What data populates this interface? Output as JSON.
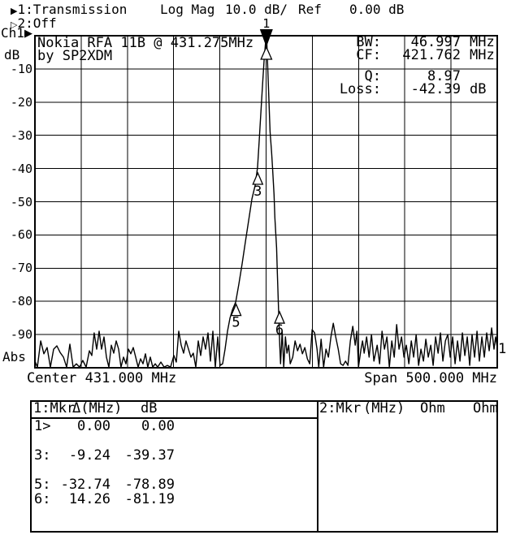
{
  "header": {
    "trace1": {
      "arrow": "▶",
      "label": "1:Transmission"
    },
    "trace2": {
      "arrow": "▷",
      "label": "2:Off"
    },
    "format": "Log Mag",
    "scale": "10.0 dB/",
    "ref_label": "Ref",
    "ref_value": "0.00 dB"
  },
  "axis": {
    "channel": "Ch1",
    "channel_arrow": "▶",
    "unit": "dB",
    "ticks": [
      "-10",
      "-20",
      "-30",
      "-40",
      "-50",
      "-60",
      "-70",
      "-80",
      "-90"
    ],
    "bottom_label": "Abs",
    "center_label": "Center 431.000 MHz",
    "span_label": "Span 500.000 MHz",
    "trace_number": "1"
  },
  "annotation": {
    "line1": "Nokia RFA 11B @ 431.275MHz",
    "line2": "by SP2XDM"
  },
  "results": {
    "rows": [
      {
        "label": "BW:",
        "num": "46.997",
        "unit": "MHz"
      },
      {
        "label": "CF:",
        "num": "421.762",
        "unit": "MHz"
      },
      {
        "label": "Q:",
        "num": "8.97",
        "unit": ""
      },
      {
        "label": "Loss:",
        "num": "-42.39",
        "unit": "dB"
      }
    ]
  },
  "marker_table": {
    "left": {
      "title": "1:Mkr",
      "col1": "Δ(MHz)",
      "col2": "dB",
      "rows": [
        {
          "id": "1>",
          "c1": "0.00",
          "c2": "0.00"
        },
        {
          "id": "",
          "c1": "",
          "c2": ""
        },
        {
          "id": "3:",
          "c1": "-9.24",
          "c2": "-39.37"
        },
        {
          "id": "",
          "c1": "",
          "c2": ""
        },
        {
          "id": "5:",
          "c1": "-32.74",
          "c2": "-78.89"
        },
        {
          "id": "6:",
          "c1": "14.26",
          "c2": "-81.19"
        }
      ]
    },
    "right": {
      "title": "2:Mkr",
      "col1": "(MHz)",
      "col2": "Ohm",
      "col3": "Ohm",
      "rows": []
    }
  },
  "colors": {
    "fg": "#000000",
    "bg": "#ffffff"
  },
  "chart_data": {
    "type": "line",
    "title": "Transmission Log Mag 10.0 dB/ Ref 0.00 dB",
    "x_axis": {
      "label": "MHz",
      "min": 181.0,
      "max": 681.0,
      "center": 431.0,
      "span": 500.0,
      "divisions": 10
    },
    "y_axis": {
      "label": "dB",
      "min": -100,
      "max": 0,
      "per_div": 10,
      "divisions": 10
    },
    "grid": true,
    "markers": [
      {
        "id": "1",
        "mhz": 431.275,
        "db": 0.0,
        "delta_mhz": 0.0,
        "style": "active-peak"
      },
      {
        "id": "3",
        "mhz": 422.035,
        "db": -39.37,
        "delta_mhz": -9.24,
        "style": "normal"
      },
      {
        "id": "5",
        "mhz": 398.535,
        "db": -78.89,
        "delta_mhz": -32.74,
        "style": "normal"
      },
      {
        "id": "6",
        "mhz": 445.535,
        "db": -81.19,
        "delta_mhz": 14.26,
        "style": "normal"
      }
    ],
    "trace": [
      [
        181.0,
        -98.0
      ],
      [
        183.6,
        -99.8
      ],
      [
        187.2,
        -91.9
      ],
      [
        190.7,
        -95.8
      ],
      [
        194.2,
        -93.9
      ],
      [
        197.7,
        -99.8
      ],
      [
        201.2,
        -94.4
      ],
      [
        204.7,
        -93.4
      ],
      [
        208.2,
        -95.4
      ],
      [
        211.8,
        -96.8
      ],
      [
        215.3,
        -99.8
      ],
      [
        218.8,
        -92.9
      ],
      [
        222.3,
        -99.8
      ],
      [
        225.8,
        -98.8
      ],
      [
        229.3,
        -99.8
      ],
      [
        232.8,
        -97.8
      ],
      [
        236.4,
        -99.8
      ],
      [
        239.9,
        -94.9
      ],
      [
        242.5,
        -96.3
      ],
      [
        245.1,
        -89.5
      ],
      [
        247.8,
        -94.4
      ],
      [
        250.4,
        -89.0
      ],
      [
        253.1,
        -94.4
      ],
      [
        255.7,
        -90.7
      ],
      [
        258.3,
        -96.8
      ],
      [
        261.0,
        -99.8
      ],
      [
        263.6,
        -93.2
      ],
      [
        266.2,
        -95.6
      ],
      [
        268.9,
        -91.9
      ],
      [
        271.5,
        -94.4
      ],
      [
        274.1,
        -99.8
      ],
      [
        276.8,
        -96.8
      ],
      [
        279.4,
        -98.8
      ],
      [
        282.1,
        -94.4
      ],
      [
        284.7,
        -95.8
      ],
      [
        287.3,
        -93.9
      ],
      [
        290.0,
        -96.8
      ],
      [
        292.6,
        -99.8
      ],
      [
        295.2,
        -97.3
      ],
      [
        297.9,
        -98.8
      ],
      [
        300.5,
        -95.8
      ],
      [
        303.1,
        -99.8
      ],
      [
        305.8,
        -96.8
      ],
      [
        308.4,
        -99.8
      ],
      [
        311.1,
        -98.8
      ],
      [
        313.7,
        -99.8
      ],
      [
        317.2,
        -98.3
      ],
      [
        320.7,
        -99.8
      ],
      [
        324.2,
        -99.3
      ],
      [
        327.7,
        -99.8
      ],
      [
        331.3,
        -96.3
      ],
      [
        333.9,
        -98.3
      ],
      [
        336.5,
        -89.0
      ],
      [
        339.2,
        -93.2
      ],
      [
        341.8,
        -95.6
      ],
      [
        344.4,
        -91.9
      ],
      [
        347.1,
        -94.4
      ],
      [
        349.7,
        -96.8
      ],
      [
        352.3,
        -95.6
      ],
      [
        355.0,
        -99.8
      ],
      [
        357.6,
        -91.9
      ],
      [
        360.3,
        -96.3
      ],
      [
        362.9,
        -90.7
      ],
      [
        365.5,
        -94.4
      ],
      [
        368.2,
        -89.5
      ],
      [
        370.8,
        -98.0
      ],
      [
        373.4,
        -89.0
      ],
      [
        376.1,
        -99.8
      ],
      [
        378.7,
        -90.7
      ],
      [
        381.3,
        -99.3
      ],
      [
        384.0,
        -98.8
      ],
      [
        386.6,
        -94.4
      ],
      [
        389.3,
        -89.0
      ],
      [
        391.9,
        -85.1
      ],
      [
        394.5,
        -82.6
      ],
      [
        398.1,
        -80.2
      ],
      [
        401.6,
        -74.8
      ],
      [
        405.1,
        -68.7
      ],
      [
        408.6,
        -62.1
      ],
      [
        412.1,
        -55.7
      ],
      [
        415.7,
        -49.1
      ],
      [
        419.2,
        -45.0
      ],
      [
        421.8,
        -39.6
      ],
      [
        423.6,
        -31.3
      ],
      [
        425.3,
        -23.5
      ],
      [
        427.1,
        -14.9
      ],
      [
        428.8,
        -7.6
      ],
      [
        430.6,
        -1.5
      ],
      [
        431.3,
        -0.8
      ],
      [
        431.9,
        -2.7
      ],
      [
        432.7,
        -8.8
      ],
      [
        433.6,
        -16.1
      ],
      [
        434.4,
        -22.2
      ],
      [
        435.3,
        -28.9
      ],
      [
        437.0,
        -35.2
      ],
      [
        437.9,
        -39.6
      ],
      [
        439.6,
        -47.9
      ],
      [
        440.5,
        -54.8
      ],
      [
        442.3,
        -63.8
      ],
      [
        443.1,
        -71.1
      ],
      [
        444.0,
        -78.5
      ],
      [
        444.9,
        -85.8
      ],
      [
        445.8,
        -93.2
      ],
      [
        446.6,
        -98.8
      ],
      [
        448.4,
        -89.0
      ],
      [
        450.1,
        -99.8
      ],
      [
        451.9,
        -90.7
      ],
      [
        453.6,
        -95.6
      ],
      [
        455.4,
        -93.2
      ],
      [
        457.1,
        -98.8
      ],
      [
        459.8,
        -96.8
      ],
      [
        462.4,
        -91.9
      ],
      [
        465.0,
        -94.9
      ],
      [
        467.7,
        -92.9
      ],
      [
        470.3,
        -95.8
      ],
      [
        472.9,
        -93.9
      ],
      [
        475.6,
        -97.3
      ],
      [
        478.2,
        -98.8
      ],
      [
        480.8,
        -88.5
      ],
      [
        483.5,
        -89.5
      ],
      [
        486.1,
        -94.4
      ],
      [
        487.9,
        -99.8
      ],
      [
        490.5,
        -91.4
      ],
      [
        493.2,
        -99.8
      ],
      [
        495.8,
        -94.4
      ],
      [
        498.4,
        -96.8
      ],
      [
        501.1,
        -90.7
      ],
      [
        503.7,
        -86.6
      ],
      [
        506.3,
        -90.7
      ],
      [
        509.0,
        -94.4
      ],
      [
        511.6,
        -98.8
      ],
      [
        514.2,
        -99.3
      ],
      [
        516.9,
        -98.0
      ],
      [
        519.5,
        -99.3
      ],
      [
        522.1,
        -91.9
      ],
      [
        524.8,
        -87.5
      ],
      [
        527.4,
        -93.2
      ],
      [
        529.2,
        -89.0
      ],
      [
        530.9,
        -99.8
      ],
      [
        533.6,
        -94.4
      ],
      [
        535.3,
        -91.9
      ],
      [
        537.1,
        -95.6
      ],
      [
        539.7,
        -90.7
      ],
      [
        542.4,
        -96.8
      ],
      [
        545.0,
        -90.0
      ],
      [
        547.6,
        -98.0
      ],
      [
        551.1,
        -93.2
      ],
      [
        553.8,
        -98.8
      ],
      [
        556.4,
        -89.0
      ],
      [
        559.0,
        -94.4
      ],
      [
        561.7,
        -90.7
      ],
      [
        564.3,
        -99.8
      ],
      [
        566.9,
        -91.9
      ],
      [
        569.6,
        -96.8
      ],
      [
        572.2,
        -87.0
      ],
      [
        574.8,
        -94.4
      ],
      [
        577.5,
        -90.7
      ],
      [
        580.1,
        -96.8
      ],
      [
        582.7,
        -93.2
      ],
      [
        585.4,
        -98.8
      ],
      [
        588.0,
        -91.9
      ],
      [
        590.6,
        -96.8
      ],
      [
        593.3,
        -90.0
      ],
      [
        595.9,
        -99.3
      ],
      [
        598.5,
        -94.4
      ],
      [
        601.2,
        -98.0
      ],
      [
        603.8,
        -91.4
      ],
      [
        606.4,
        -96.8
      ],
      [
        609.1,
        -93.2
      ],
      [
        611.7,
        -99.3
      ],
      [
        614.3,
        -90.7
      ],
      [
        617.0,
        -95.6
      ],
      [
        619.6,
        -89.5
      ],
      [
        622.2,
        -98.0
      ],
      [
        624.9,
        -91.9
      ],
      [
        627.5,
        -90.0
      ],
      [
        630.1,
        -96.8
      ],
      [
        632.8,
        -90.7
      ],
      [
        635.4,
        -98.8
      ],
      [
        638.0,
        -91.9
      ],
      [
        640.7,
        -98.0
      ],
      [
        643.3,
        -89.5
      ],
      [
        645.9,
        -96.3
      ],
      [
        648.6,
        -90.7
      ],
      [
        651.2,
        -99.3
      ],
      [
        653.8,
        -90.0
      ],
      [
        656.5,
        -96.8
      ],
      [
        659.1,
        -89.0
      ],
      [
        661.7,
        -98.0
      ],
      [
        664.4,
        -90.7
      ],
      [
        667.0,
        -96.8
      ],
      [
        669.6,
        -89.5
      ],
      [
        672.3,
        -94.9
      ],
      [
        674.9,
        -88.0
      ],
      [
        677.5,
        -94.4
      ],
      [
        679.2,
        -90.7
      ],
      [
        681.0,
        -93.9
      ]
    ]
  }
}
